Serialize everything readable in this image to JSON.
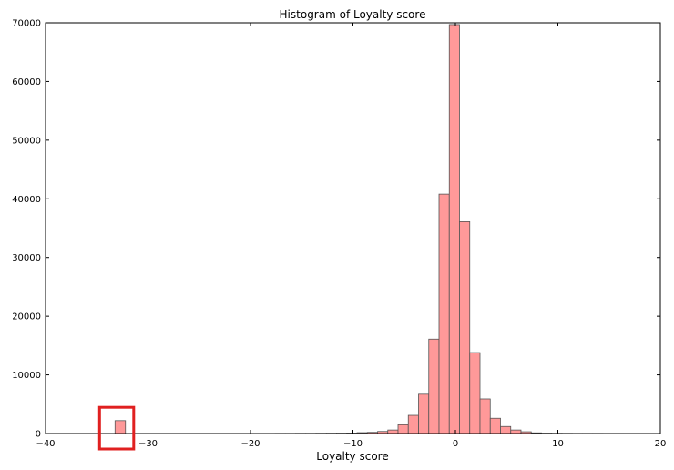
{
  "chart_data": {
    "type": "bar",
    "title": "Histogram of Loyalty score",
    "xlabel": "Loyalty score",
    "ylabel": "",
    "xlim": [
      -40,
      20
    ],
    "ylim": [
      0,
      70000
    ],
    "grid": false,
    "bar_color": "#ff9999",
    "bar_edge_color": "#555555",
    "highlight_color": "#e02020",
    "highlight_range": {
      "x": [
        -33.4,
        -33.0
      ],
      "y": [
        0,
        2300
      ]
    },
    "x_ticks": [
      -40,
      -30,
      -20,
      -10,
      0,
      10,
      20
    ],
    "x_tick_labels": [
      "−40",
      "−30",
      "−20",
      "−10",
      "0",
      "10",
      "20"
    ],
    "y_ticks": [
      0,
      10000,
      20000,
      30000,
      40000,
      50000,
      60000,
      70000
    ],
    "y_tick_labels": [
      "0",
      "10000",
      "20000",
      "30000",
      "40000",
      "50000",
      "60000",
      "70000"
    ],
    "bins": [
      {
        "x0": -33.22,
        "x1": -32.2,
        "value": 2200
      },
      {
        "x0": -17.6,
        "x1": -16.6,
        "value": 20
      },
      {
        "x0": -16.6,
        "x1": -15.6,
        "value": 20
      },
      {
        "x0": -15.6,
        "x1": -14.6,
        "value": 30
      },
      {
        "x0": -14.6,
        "x1": -13.6,
        "value": 30
      },
      {
        "x0": -13.6,
        "x1": -12.6,
        "value": 40
      },
      {
        "x0": -12.6,
        "x1": -11.6,
        "value": 50
      },
      {
        "x0": -11.6,
        "x1": -10.6,
        "value": 60
      },
      {
        "x0": -10.6,
        "x1": -9.6,
        "value": 80
      },
      {
        "x0": -9.6,
        "x1": -8.6,
        "value": 150
      },
      {
        "x0": -8.6,
        "x1": -7.6,
        "value": 200
      },
      {
        "x0": -7.6,
        "x1": -6.6,
        "value": 350
      },
      {
        "x0": -6.6,
        "x1": -5.6,
        "value": 600
      },
      {
        "x0": -5.6,
        "x1": -4.6,
        "value": 1500
      },
      {
        "x0": -4.6,
        "x1": -3.6,
        "value": 3100
      },
      {
        "x0": -3.6,
        "x1": -2.6,
        "value": 6700
      },
      {
        "x0": -2.6,
        "x1": -1.6,
        "value": 16100
      },
      {
        "x0": -1.6,
        "x1": -0.6,
        "value": 40800
      },
      {
        "x0": -0.6,
        "x1": 0.4,
        "value": 69700
      },
      {
        "x0": 0.4,
        "x1": 1.4,
        "value": 36100
      },
      {
        "x0": 1.4,
        "x1": 2.4,
        "value": 13800
      },
      {
        "x0": 2.4,
        "x1": 3.4,
        "value": 5900
      },
      {
        "x0": 3.4,
        "x1": 4.4,
        "value": 2600
      },
      {
        "x0": 4.4,
        "x1": 5.4,
        "value": 1200
      },
      {
        "x0": 5.4,
        "x1": 6.4,
        "value": 600
      },
      {
        "x0": 6.4,
        "x1": 7.4,
        "value": 300
      },
      {
        "x0": 7.4,
        "x1": 8.4,
        "value": 120
      },
      {
        "x0": 8.4,
        "x1": 9.4,
        "value": 60
      },
      {
        "x0": 9.4,
        "x1": 10.4,
        "value": 40
      },
      {
        "x0": 10.4,
        "x1": 11.4,
        "value": 30
      },
      {
        "x0": 11.4,
        "x1": 12.4,
        "value": 20
      },
      {
        "x0": 12.4,
        "x1": 13.4,
        "value": 20
      },
      {
        "x0": 13.4,
        "x1": 14.4,
        "value": 20
      },
      {
        "x0": 14.4,
        "x1": 15.4,
        "value": 15
      },
      {
        "x0": 15.4,
        "x1": 16.4,
        "value": 15
      },
      {
        "x0": 16.4,
        "x1": 17.4,
        "value": 10
      },
      {
        "x0": 17.4,
        "x1": 18.2,
        "value": 10
      }
    ]
  }
}
